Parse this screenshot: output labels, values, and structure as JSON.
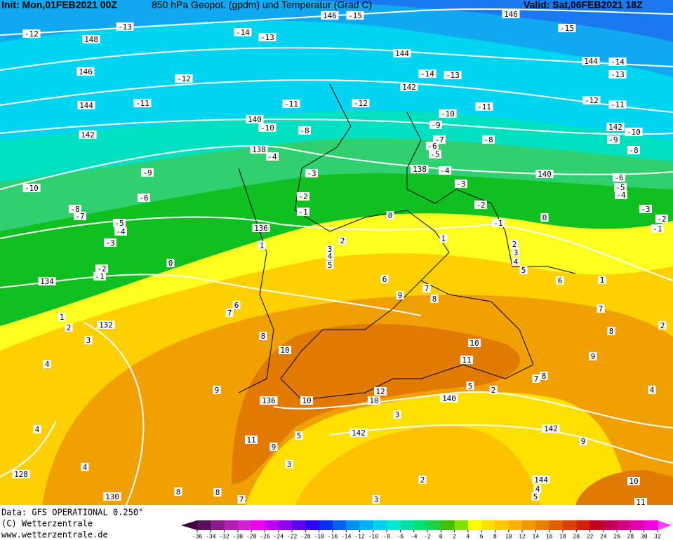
{
  "header": {
    "init": "Init: Mon,01FEB2021 00Z",
    "title": "850 hPa Geopot. (gpdm) und Temperatur (Grad C)",
    "valid": "Valid: Sat,06FEB2021 18Z"
  },
  "footer": {
    "data": "Data: GFS OPERATIONAL 0.250°",
    "copyright": "(C) Wetterzentrale",
    "url": "www.wetterzentrale.de"
  },
  "legend": {
    "ticks": [
      -36,
      -34,
      -32,
      -30,
      -28,
      -26,
      -24,
      -22,
      -20,
      -18,
      -16,
      -14,
      -12,
      -10,
      -8,
      -6,
      -4,
      -2,
      0,
      2,
      4,
      6,
      8,
      10,
      12,
      14,
      16,
      18,
      20,
      22,
      24,
      26,
      28,
      30,
      32
    ]
  },
  "map": {
    "geopotential_labels": [
      148,
      146,
      144,
      142,
      140,
      138,
      136,
      134,
      132,
      130,
      128,
      144,
      142,
      138,
      140,
      144,
      142,
      136,
      140,
      142,
      142,
      144,
      146,
      146
    ],
    "temperature_labels": [
      -12,
      -13,
      -14,
      -13,
      -15,
      -15,
      -14,
      -13,
      -12,
      -14,
      -13,
      -11,
      -11,
      -12,
      -11,
      -12,
      -11,
      -10,
      -10,
      -8,
      -9,
      -10,
      -9,
      -8,
      -8,
      -7,
      -6,
      -5,
      -4,
      -4,
      -3,
      -9,
      -6,
      -10,
      -3,
      -2,
      -1,
      -6,
      -5,
      -4,
      -3,
      -2,
      -1,
      -2,
      -1,
      0,
      0,
      -8,
      -7,
      -5,
      -4,
      -3,
      1,
      2,
      1,
      2,
      3,
      4,
      5,
      3,
      4,
      5,
      0,
      -2,
      -1,
      6,
      6,
      1,
      7,
      8,
      9,
      7,
      6,
      7,
      1,
      2,
      3,
      4,
      8,
      2,
      8,
      10,
      10,
      11,
      9,
      8,
      7,
      2,
      4,
      9,
      10,
      12,
      10,
      5,
      4,
      11,
      9,
      5,
      3,
      9,
      4,
      3,
      2,
      10,
      8,
      8,
      7,
      3,
      5,
      4,
      11
    ]
  }
}
